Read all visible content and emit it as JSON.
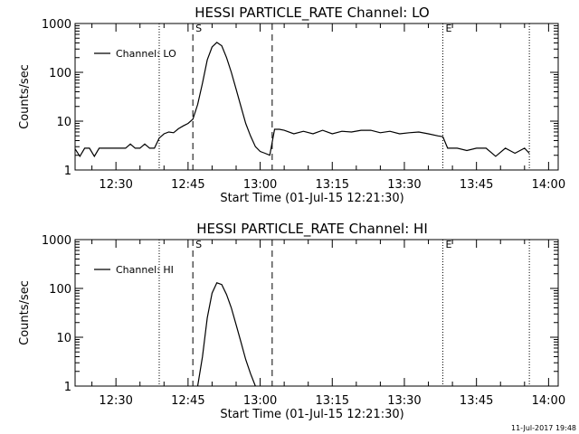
{
  "footer_date": "11-Jul-2017 19:48",
  "chart_data": [
    {
      "type": "line",
      "title": "HESSI PARTICLE_RATE Channel: LO",
      "xlabel": "Start Time (01-Jul-15 12:21:30)",
      "ylabel": "Counts/sec",
      "x_ticks": [
        "12:30",
        "12:45",
        "13:00",
        "13:15",
        "13:30",
        "13:45",
        "14:00"
      ],
      "y_ticks": [
        "1",
        "10",
        "100",
        "1000"
      ],
      "xlim": [
        "12:21:30",
        "14:02:00"
      ],
      "ylim": [
        1,
        1000
      ],
      "y_scale": "log",
      "legend": [
        "Channel: LO"
      ],
      "legend_position": "top-left",
      "markers": [
        {
          "time": "12:39:00",
          "style": "dotted",
          "label": ""
        },
        {
          "time": "12:46:00",
          "style": "dashed",
          "label": "S"
        },
        {
          "time": "13:02:30",
          "style": "dashed",
          "label": ""
        },
        {
          "time": "13:38:00",
          "style": "dotted",
          "label": "E"
        },
        {
          "time": "13:56:00",
          "style": "dotted",
          "label": ""
        }
      ],
      "series": [
        {
          "name": "Channel: LO",
          "x": [
            "12:21:30",
            "12:22:30",
            "12:23:30",
            "12:24:30",
            "12:25:30",
            "12:26:30",
            "12:27:30",
            "12:28:30",
            "12:30:00",
            "12:32:00",
            "12:33:00",
            "12:34:00",
            "12:35:00",
            "12:36:00",
            "12:37:00",
            "12:38:00",
            "12:39:00",
            "12:40:00",
            "12:41:00",
            "12:42:00",
            "12:43:00",
            "12:44:00",
            "12:45:00",
            "12:46:00",
            "12:47:00",
            "12:48:00",
            "12:49:00",
            "12:50:00",
            "12:51:00",
            "12:52:00",
            "12:53:00",
            "12:54:00",
            "12:55:00",
            "12:56:00",
            "12:57:00",
            "12:58:00",
            "12:59:00",
            "13:00:00",
            "13:01:00",
            "13:02:00",
            "13:03:00",
            "13:04:00",
            "13:05:00",
            "13:07:00",
            "13:09:00",
            "13:11:00",
            "13:13:00",
            "13:15:00",
            "13:17:00",
            "13:19:00",
            "13:21:00",
            "13:23:00",
            "13:25:00",
            "13:27:00",
            "13:29:00",
            "13:31:00",
            "13:33:00",
            "13:35:00",
            "13:37:00",
            "13:38:00",
            "13:39:00",
            "13:40:00",
            "13:41:00",
            "13:43:00",
            "13:45:00",
            "13:47:00",
            "13:49:00",
            "13:51:00",
            "13:53:00",
            "13:55:00",
            "13:56:00"
          ],
          "y": [
            2.7,
            1.9,
            2.8,
            2.8,
            1.9,
            2.8,
            2.8,
            2.8,
            2.8,
            2.8,
            3.4,
            2.8,
            2.8,
            3.4,
            2.8,
            2.8,
            4.5,
            5.5,
            6,
            5.8,
            7,
            8,
            9,
            11,
            22,
            60,
            180,
            330,
            410,
            350,
            200,
            100,
            45,
            20,
            9,
            5,
            3,
            2.4,
            2.2,
            2.0,
            6.8,
            6.8,
            6.5,
            5.5,
            6.2,
            5.5,
            6.5,
            5.5,
            6.2,
            6,
            6.5,
            6.5,
            5.8,
            6.2,
            5.5,
            5.8,
            6,
            5.5,
            5,
            4.8,
            2.8,
            2.8,
            2.8,
            2.5,
            2.8,
            2.8,
            1.9,
            2.8,
            2.2,
            2.8,
            2.2
          ]
        }
      ]
    },
    {
      "type": "line",
      "title": "HESSI PARTICLE_RATE Channel: HI",
      "xlabel": "Start Time (01-Jul-15 12:21:30)",
      "ylabel": "Counts/sec",
      "x_ticks": [
        "12:30",
        "12:45",
        "13:00",
        "13:15",
        "13:30",
        "13:45",
        "14:00"
      ],
      "y_ticks": [
        "1",
        "10",
        "100",
        "1000"
      ],
      "xlim": [
        "12:21:30",
        "14:02:00"
      ],
      "ylim": [
        1,
        1000
      ],
      "y_scale": "log",
      "legend": [
        "Channel: HI"
      ],
      "legend_position": "top-left",
      "markers": [
        {
          "time": "12:39:00",
          "style": "dotted",
          "label": ""
        },
        {
          "time": "12:46:00",
          "style": "dashed",
          "label": "S"
        },
        {
          "time": "13:02:30",
          "style": "dashed",
          "label": ""
        },
        {
          "time": "13:38:00",
          "style": "dotted",
          "label": "E"
        },
        {
          "time": "13:56:00",
          "style": "dotted",
          "label": ""
        }
      ],
      "series": [
        {
          "name": "Channel: HI",
          "x": [
            "12:47:00",
            "12:48:00",
            "12:49:00",
            "12:50:00",
            "12:51:00",
            "12:52:00",
            "12:53:00",
            "12:54:00",
            "12:55:00",
            "12:56:00",
            "12:57:00",
            "12:58:00",
            "12:59:00"
          ],
          "y": [
            1,
            4,
            25,
            80,
            130,
            120,
            75,
            40,
            18,
            8,
            3.5,
            1.8,
            1
          ]
        }
      ]
    }
  ]
}
